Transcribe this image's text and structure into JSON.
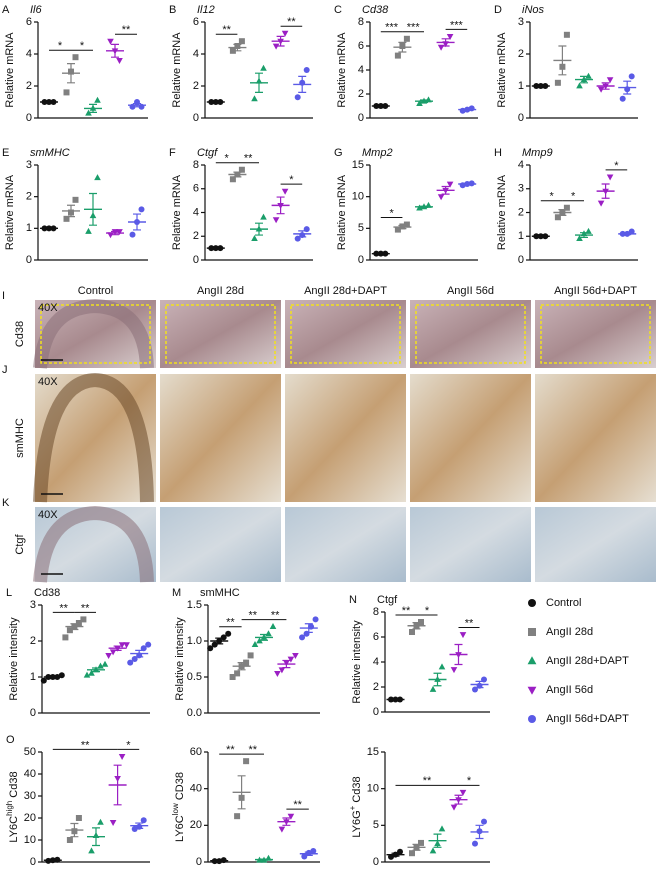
{
  "chart_data": [
    {
      "type": "dotplot",
      "panel": "A",
      "title": "Il6",
      "italic_title": true,
      "ylabel": "Relative  mRNA",
      "ylim": [
        0,
        6
      ],
      "yticks": [
        0,
        2,
        4,
        6
      ],
      "groups": [
        {
          "values": [
            1,
            1,
            1
          ],
          "mean": 1,
          "sem": 0.02
        },
        {
          "values": [
            1.6,
            2.9,
            3.8
          ],
          "mean": 2.8,
          "sem": 0.6
        },
        {
          "values": [
            0.3,
            0.6,
            1.1
          ],
          "mean": 0.6,
          "sem": 0.25
        },
        {
          "values": [
            4.8,
            4.2,
            3.6
          ],
          "mean": 4.2,
          "sem": 0.4
        },
        {
          "values": [
            0.7,
            1.0,
            0.7
          ],
          "mean": 0.8,
          "sem": 0.1
        }
      ],
      "brackets": [
        {
          "between": [
            0,
            1
          ],
          "label": "*"
        },
        {
          "between": [
            1,
            2
          ],
          "label": "*"
        },
        {
          "between": [
            3,
            4
          ],
          "label": "**"
        }
      ]
    },
    {
      "type": "dotplot",
      "panel": "B",
      "title": "Il12",
      "italic_title": true,
      "ylabel": "Relative  mRNA",
      "ylim": [
        0,
        6
      ],
      "yticks": [
        0,
        2,
        4,
        6
      ],
      "groups": [
        {
          "values": [
            1,
            1,
            1
          ],
          "mean": 1,
          "sem": 0.02
        },
        {
          "values": [
            4.2,
            4.5,
            4.8
          ],
          "mean": 4.4,
          "sem": 0.2
        },
        {
          "values": [
            1.2,
            2.3,
            3.1
          ],
          "mean": 2.2,
          "sem": 0.6
        },
        {
          "values": [
            4.5,
            4.8,
            5.3
          ],
          "mean": 4.8,
          "sem": 0.3
        },
        {
          "values": [
            1.3,
            2.2,
            3.0
          ],
          "mean": 2.1,
          "sem": 0.5
        }
      ],
      "brackets": [
        {
          "between": [
            0,
            1
          ],
          "label": "**"
        },
        {
          "between": [
            3,
            4
          ],
          "label": "**"
        }
      ]
    },
    {
      "type": "dotplot",
      "panel": "C",
      "title": "Cd38",
      "italic_title": true,
      "ylabel": "Relative  mRNA",
      "ylim": [
        0,
        8
      ],
      "yticks": [
        0,
        2,
        4,
        6,
        8
      ],
      "groups": [
        {
          "values": [
            1,
            1,
            1
          ],
          "mean": 1,
          "sem": 0.02
        },
        {
          "values": [
            5.2,
            6.0,
            6.6
          ],
          "mean": 5.9,
          "sem": 0.4
        },
        {
          "values": [
            1.2,
            1.4,
            1.5
          ],
          "mean": 1.4,
          "sem": 0.1
        },
        {
          "values": [
            5.9,
            6.2,
            6.8
          ],
          "mean": 6.3,
          "sem": 0.3
        },
        {
          "values": [
            0.6,
            0.7,
            0.8
          ],
          "mean": 0.7,
          "sem": 0.05
        }
      ],
      "brackets": [
        {
          "between": [
            0,
            1
          ],
          "label": "***"
        },
        {
          "between": [
            1,
            2
          ],
          "label": "***"
        },
        {
          "between": [
            3,
            4
          ],
          "label": "***"
        }
      ]
    },
    {
      "type": "dotplot",
      "panel": "D",
      "title": "iNos",
      "italic_title": true,
      "ylabel": "Relative  mRNA",
      "ylim": [
        0,
        3
      ],
      "yticks": [
        0,
        1,
        2,
        3
      ],
      "groups": [
        {
          "values": [
            1,
            1,
            1
          ],
          "mean": 1,
          "sem": 0.02
        },
        {
          "values": [
            1.1,
            1.6,
            2.6
          ],
          "mean": 1.8,
          "sem": 0.45
        },
        {
          "values": [
            1.0,
            1.2,
            1.3
          ],
          "mean": 1.2,
          "sem": 0.1
        },
        {
          "values": [
            0.9,
            1.0,
            1.2
          ],
          "mean": 1.0,
          "sem": 0.1
        },
        {
          "values": [
            0.6,
            0.9,
            1.3
          ],
          "mean": 0.95,
          "sem": 0.2
        }
      ],
      "brackets": []
    },
    {
      "type": "dotplot",
      "panel": "E",
      "title": "smMHC",
      "italic_title": true,
      "ylabel": "Relative  mRNA",
      "ylim": [
        0,
        3
      ],
      "yticks": [
        0,
        1,
        2,
        3
      ],
      "groups": [
        {
          "values": [
            1,
            1,
            1
          ],
          "mean": 1,
          "sem": 0.02
        },
        {
          "values": [
            1.3,
            1.5,
            1.9
          ],
          "mean": 1.55,
          "sem": 0.18
        },
        {
          "values": [
            0.9,
            1.4,
            2.6
          ],
          "mean": 1.6,
          "sem": 0.5
        },
        {
          "values": [
            0.8,
            0.9,
            0.9
          ],
          "mean": 0.85,
          "sem": 0.05
        },
        {
          "values": [
            0.8,
            1.2,
            1.6
          ],
          "mean": 1.2,
          "sem": 0.25
        }
      ],
      "brackets": []
    },
    {
      "type": "dotplot",
      "panel": "F",
      "title": "Ctgf",
      "italic_title": true,
      "ylabel": "Relative  mRNA",
      "ylim": [
        0,
        8
      ],
      "yticks": [
        0,
        2,
        4,
        6,
        8
      ],
      "groups": [
        {
          "values": [
            1,
            1,
            1
          ],
          "mean": 1,
          "sem": 0.02
        },
        {
          "values": [
            6.8,
            7.2,
            7.6
          ],
          "mean": 7.2,
          "sem": 0.2
        },
        {
          "values": [
            1.8,
            2.6,
            3.6
          ],
          "mean": 2.6,
          "sem": 0.5
        },
        {
          "values": [
            3.4,
            4.6,
            5.8
          ],
          "mean": 4.6,
          "sem": 0.7
        },
        {
          "values": [
            1.8,
            2.1,
            2.6
          ],
          "mean": 2.2,
          "sem": 0.25
        }
      ],
      "brackets": [
        {
          "between": [
            0,
            1
          ],
          "label": "*"
        },
        {
          "between": [
            1,
            2
          ],
          "label": "**"
        },
        {
          "between": [
            3,
            4
          ],
          "label": "*"
        }
      ]
    },
    {
      "type": "dotplot",
      "panel": "G",
      "title": "Mmp2",
      "italic_title": true,
      "ylabel": "Relative  mRNA",
      "ylim": [
        0,
        15
      ],
      "yticks": [
        0,
        5,
        10,
        15
      ],
      "groups": [
        {
          "values": [
            1,
            1,
            1
          ],
          "mean": 1,
          "sem": 0.02
        },
        {
          "values": [
            4.8,
            5.3,
            5.6
          ],
          "mean": 5.2,
          "sem": 0.25
        },
        {
          "values": [
            8.2,
            8.4,
            8.6
          ],
          "mean": 8.4,
          "sem": 0.1
        },
        {
          "values": [
            10,
            11,
            12
          ],
          "mean": 11,
          "sem": 0.6
        },
        {
          "values": [
            11.8,
            12,
            12.1
          ],
          "mean": 12,
          "sem": 0.1
        }
      ],
      "brackets": [
        {
          "between": [
            0,
            1
          ],
          "label": "*"
        }
      ]
    },
    {
      "type": "dotplot",
      "panel": "H",
      "title": "Mmp9",
      "italic_title": true,
      "ylabel": "Relative  mRNA",
      "ylim": [
        0,
        4
      ],
      "yticks": [
        0,
        1,
        2,
        3,
        4
      ],
      "groups": [
        {
          "values": [
            1,
            1,
            1
          ],
          "mean": 1,
          "sem": 0.02
        },
        {
          "values": [
            1.8,
            2.0,
            2.2
          ],
          "mean": 2.0,
          "sem": 0.12
        },
        {
          "values": [
            0.9,
            1.1,
            1.2
          ],
          "mean": 1.05,
          "sem": 0.1
        },
        {
          "values": [
            2.4,
            2.9,
            3.5
          ],
          "mean": 2.9,
          "sem": 0.3
        },
        {
          "values": [
            1.1,
            1.1,
            1.2
          ],
          "mean": 1.1,
          "sem": 0.03
        }
      ],
      "brackets": [
        {
          "between": [
            0,
            1
          ],
          "label": "*"
        },
        {
          "between": [
            1,
            2
          ],
          "label": "*"
        },
        {
          "between": [
            3,
            4
          ],
          "label": "*"
        }
      ]
    },
    {
      "type": "dotplot",
      "panel": "L",
      "title": "Cd38",
      "italic_title": false,
      "ylabel": "Relative intensity",
      "ylim": [
        0,
        3
      ],
      "yticks": [
        0,
        1,
        2,
        3
      ],
      "groups": [
        {
          "values": [
            0.9,
            1.0,
            1.0,
            1.0,
            1.05
          ],
          "mean": 1,
          "sem": 0.03
        },
        {
          "values": [
            2.1,
            2.3,
            2.4,
            2.5,
            2.6
          ],
          "mean": 2.4,
          "sem": 0.08
        },
        {
          "values": [
            1.05,
            1.1,
            1.2,
            1.3,
            1.35
          ],
          "mean": 1.2,
          "sem": 0.05
        },
        {
          "values": [
            1.6,
            1.7,
            1.8,
            1.9,
            1.9
          ],
          "mean": 1.8,
          "sem": 0.06
        },
        {
          "values": [
            1.4,
            1.5,
            1.6,
            1.8,
            1.9
          ],
          "mean": 1.65,
          "sem": 0.09
        }
      ],
      "brackets": [
        {
          "between": [
            0,
            1
          ],
          "label": "**"
        },
        {
          "between": [
            1,
            2
          ],
          "label": "**"
        }
      ]
    },
    {
      "type": "dotplot",
      "panel": "M",
      "title": "smMHC",
      "italic_title": false,
      "ylabel": "Relative intensity",
      "ylim": [
        0,
        1.5
      ],
      "yticks": [
        {
          "value": 0,
          "label": "0.0"
        },
        0.5,
        {
          "value": 1,
          "label": "1.0"
        },
        1.5
      ],
      "groups": [
        {
          "values": [
            0.9,
            0.95,
            1.0,
            1.05,
            1.1
          ],
          "mean": 1.0,
          "sem": 0.04
        },
        {
          "values": [
            0.5,
            0.55,
            0.65,
            0.7,
            0.8
          ],
          "mean": 0.65,
          "sem": 0.05
        },
        {
          "values": [
            0.95,
            1.0,
            1.05,
            1.1,
            1.2
          ],
          "mean": 1.05,
          "sem": 0.04
        },
        {
          "values": [
            0.55,
            0.6,
            0.7,
            0.75,
            0.8
          ],
          "mean": 0.68,
          "sem": 0.05
        },
        {
          "values": [
            1.05,
            1.1,
            1.2,
            1.3
          ],
          "mean": 1.18,
          "sem": 0.06
        }
      ],
      "brackets": [
        {
          "between": [
            0,
            1
          ],
          "label": "**"
        },
        {
          "between": [
            1,
            2
          ],
          "label": "**"
        },
        {
          "between": [
            2,
            3
          ],
          "label": "**"
        }
      ]
    },
    {
      "type": "dotplot",
      "panel": "N",
      "title": "Ctgf",
      "italic_title": false,
      "ylabel": "Relative intensity",
      "ylim": [
        0,
        8
      ],
      "yticks": [
        0,
        2,
        4,
        6,
        8
      ],
      "groups": [
        {
          "values": [
            1,
            1,
            1
          ],
          "mean": 1,
          "sem": 0.02
        },
        {
          "values": [
            6.4,
            6.9,
            7.2
          ],
          "mean": 6.9,
          "sem": 0.25
        },
        {
          "values": [
            1.8,
            2.6,
            3.6
          ],
          "mean": 2.6,
          "sem": 0.5
        },
        {
          "values": [
            3.4,
            4.6,
            6.2
          ],
          "mean": 4.6,
          "sem": 0.8
        },
        {
          "values": [
            1.8,
            2.1,
            2.6
          ],
          "mean": 2.2,
          "sem": 0.25
        }
      ],
      "brackets": [
        {
          "between": [
            0,
            1
          ],
          "label": "**"
        },
        {
          "between": [
            1,
            2
          ],
          "label": "*"
        },
        {
          "between": [
            3,
            4
          ],
          "label": "**"
        }
      ]
    },
    {
      "type": "dotplot",
      "panel": "O",
      "ylabel": [
        "LY6C",
        "high",
        " Cd38"
      ],
      "ylim": [
        0,
        50
      ],
      "yticks": [
        0,
        10,
        20,
        30,
        40,
        50
      ],
      "groups": [
        {
          "values": [
            0.5,
            0.8,
            1
          ],
          "mean": 0.8,
          "sem": 0.1
        },
        {
          "values": [
            10,
            14,
            20
          ],
          "mean": 14.5,
          "sem": 3
        },
        {
          "values": [
            5,
            12,
            18
          ],
          "mean": 11.5,
          "sem": 4
        },
        {
          "values": [
            18,
            38,
            48
          ],
          "mean": 35,
          "sem": 9
        },
        {
          "values": [
            15,
            16,
            19
          ],
          "mean": 16.5,
          "sem": 1.2
        }
      ],
      "brackets": [
        {
          "between": [
            0,
            3
          ],
          "label": "**"
        },
        {
          "between": [
            3,
            4
          ],
          "label": "*"
        }
      ]
    },
    {
      "type": "dotplot",
      "ylabel": [
        "LY6C",
        "low",
        " CD38"
      ],
      "ylim": [
        0,
        60
      ],
      "yticks": [
        0,
        20,
        40,
        60
      ],
      "groups": [
        {
          "values": [
            0.5,
            0.5,
            1
          ],
          "mean": 0.7,
          "sem": 0.1
        },
        {
          "values": [
            25,
            35,
            55
          ],
          "mean": 38,
          "sem": 9
        },
        {
          "values": [
            1,
            1,
            2
          ],
          "mean": 1.3,
          "sem": 0.3
        },
        {
          "values": [
            18,
            22,
            25
          ],
          "mean": 22,
          "sem": 2
        },
        {
          "values": [
            3,
            5,
            6
          ],
          "mean": 4.5,
          "sem": 0.9
        }
      ],
      "brackets": [
        {
          "between": [
            0,
            1
          ],
          "label": "**"
        },
        {
          "between": [
            1,
            2
          ],
          "label": "**"
        },
        {
          "between": [
            3,
            4
          ],
          "label": "**"
        }
      ]
    },
    {
      "type": "dotplot",
      "ylabel": [
        "LY6G",
        "+",
        " Cd38"
      ],
      "ylim": [
        0,
        15
      ],
      "yticks": [
        0,
        5,
        10,
        15
      ],
      "groups": [
        {
          "values": [
            0.7,
            1,
            1.4
          ],
          "mean": 1.0,
          "sem": 0.2
        },
        {
          "values": [
            1.2,
            2,
            2.6
          ],
          "mean": 2,
          "sem": 0.4
        },
        {
          "values": [
            1.5,
            2.5,
            4.5
          ],
          "mean": 2.9,
          "sem": 0.9
        },
        {
          "values": [
            7.5,
            8.5,
            9.5
          ],
          "mean": 8.5,
          "sem": 0.6
        },
        {
          "values": [
            2.5,
            4.2,
            5.5
          ],
          "mean": 4.1,
          "sem": 0.9
        }
      ],
      "brackets": [
        {
          "between": [
            0,
            3
          ],
          "label": "**"
        },
        {
          "between": [
            3,
            4
          ],
          "label": "*"
        }
      ]
    }
  ],
  "legend": {
    "series": [
      {
        "name": "Control",
        "color": "#111111",
        "marker": "circle"
      },
      {
        "name": "AngII 28d",
        "color": "#808080",
        "marker": "square"
      },
      {
        "name": "AngII 28d+DAPT",
        "color": "#1a9e6a",
        "marker": "triangle"
      },
      {
        "name": "AngII 56d",
        "color": "#9b1fc4",
        "marker": "triangle-down"
      },
      {
        "name": "AngII 56d+DAPT",
        "color": "#5a5ae6",
        "marker": "circle"
      }
    ]
  },
  "histology": {
    "columns": [
      "Control",
      "AngII 28d",
      "AngII 28d+DAPT",
      "AngII 56d",
      "AngII 56d+DAPT"
    ],
    "rows": [
      {
        "panel": "I",
        "label": "Cd38",
        "magnification": "40X"
      },
      {
        "panel": "J",
        "label": "smMHC",
        "magnification": "40X"
      },
      {
        "panel": "K",
        "label": "Ctgf",
        "magnification": "40X"
      }
    ]
  }
}
